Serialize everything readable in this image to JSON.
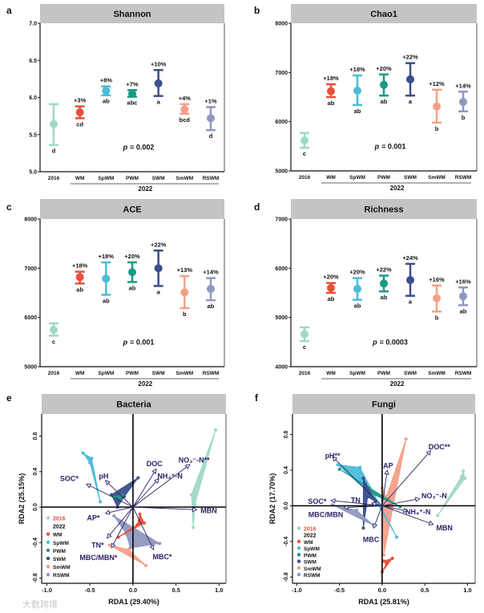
{
  "colors": {
    "2016": "#9fd9c6",
    "WM": "#e8503a",
    "SpWM": "#4bbcd8",
    "PWM": "#1a9a85",
    "SWM": "#3b4f8c",
    "SmWM": "#f4a089",
    "RSWM": "#8f98c0",
    "arrow": "#2a2468",
    "header": "#c4c4c4",
    "legend_2016_text": "#e8503a"
  },
  "watermark": "大数跨境",
  "chart_data": [
    {
      "type": "errorbar",
      "panel": "a",
      "title": "Shannon",
      "categories": [
        "2016",
        "WM",
        "SpWM",
        "PWM",
        "SWM",
        "SmWM",
        "RSWM"
      ],
      "group_label": "2022",
      "ylim": [
        5.0,
        7.0
      ],
      "yticks": [
        "5.0",
        "5.5",
        "6.0",
        "6.5",
        "7.0"
      ],
      "ytick_values": [
        5.0,
        5.5,
        6.0,
        6.5,
        7.0
      ],
      "mean": [
        5.64,
        5.8,
        6.09,
        6.05,
        6.19,
        5.84,
        5.72
      ],
      "lower": [
        5.36,
        5.72,
        6.03,
        6.01,
        6.02,
        5.78,
        5.56
      ],
      "upper": [
        5.91,
        5.88,
        6.15,
        6.1,
        6.37,
        5.91,
        5.87
      ],
      "change": [
        "",
        "+3%",
        "+8%",
        "+7%",
        "+10%",
        "+4%",
        "+1%"
      ],
      "letters": [
        "d",
        "cd",
        "ab",
        "abc",
        "a",
        "bcd",
        "d"
      ],
      "p_label": "p",
      "p_value": "= 0.002"
    },
    {
      "type": "errorbar",
      "panel": "b",
      "title": "Chao1",
      "categories": [
        "2016",
        "WM",
        "SpWM",
        "PWM",
        "SWM",
        "SmWM",
        "RSWM"
      ],
      "group_label": "2022",
      "ylim": [
        5000,
        8000
      ],
      "yticks": [
        "5000",
        "6000",
        "7000",
        "8000"
      ],
      "ytick_values": [
        5000,
        6000,
        7000,
        8000
      ],
      "mean": [
        5620,
        6620,
        6630,
        6750,
        6860,
        6310,
        6400
      ],
      "lower": [
        5470,
        6500,
        6340,
        6530,
        6530,
        5980,
        6210
      ],
      "upper": [
        5770,
        6760,
        6940,
        6960,
        7190,
        6650,
        6610
      ],
      "change": [
        "",
        "+18%",
        "+18%",
        "+20%",
        "+22%",
        "+12%",
        "+14%"
      ],
      "letters": [
        "c",
        "ab",
        "ab",
        "ab",
        "a",
        "b",
        "b"
      ],
      "p_label": "p",
      "p_value": "= 0.001"
    },
    {
      "type": "errorbar",
      "panel": "c",
      "title": "ACE",
      "categories": [
        "2016",
        "WM",
        "SpWM",
        "PWM",
        "SWM",
        "SmWM",
        "RSWM"
      ],
      "group_label": "2022",
      "ylim": [
        5000,
        8000
      ],
      "yticks": [
        "5000",
        "6000",
        "7000",
        "8000"
      ],
      "ytick_values": [
        5000,
        6000,
        7000,
        8000
      ],
      "mean": [
        5750,
        6820,
        6790,
        6920,
        7000,
        6510,
        6580
      ],
      "lower": [
        5630,
        6690,
        6460,
        6720,
        6640,
        6190,
        6350
      ],
      "upper": [
        5880,
        6930,
        7120,
        7120,
        7360,
        6840,
        6800
      ],
      "change": [
        "",
        "+18%",
        "+18%",
        "+20%",
        "+22%",
        "+13%",
        "+14%"
      ],
      "letters": [
        "c",
        "ab",
        "ab",
        "ab",
        "a",
        "b",
        "ab"
      ],
      "p_label": "p",
      "p_value": "= 0.001"
    },
    {
      "type": "errorbar",
      "panel": "d",
      "title": "Richness",
      "categories": [
        "2016",
        "WM",
        "SpWM",
        "PWM",
        "SWM",
        "SmWM",
        "RSWM"
      ],
      "group_label": "2022",
      "ylim": [
        4000,
        7000
      ],
      "yticks": [
        "4000",
        "5000",
        "6000",
        "7000"
      ],
      "ytick_values": [
        4000,
        5000,
        6000,
        7000
      ],
      "mean": [
        4660,
        5600,
        5580,
        5690,
        5760,
        5390,
        5430
      ],
      "lower": [
        4520,
        5500,
        5360,
        5530,
        5440,
        5120,
        5250
      ],
      "upper": [
        4800,
        5700,
        5800,
        5850,
        6090,
        5650,
        5610
      ],
      "change": [
        "",
        "+20%",
        "+20%",
        "+22%",
        "+24%",
        "+16%",
        "+16%"
      ],
      "letters": [
        "c",
        "ab",
        "ab",
        "ab",
        "a",
        "b",
        "ab"
      ],
      "p_label": "p",
      "p_value": "= 0.0003"
    },
    {
      "type": "scatter",
      "subtype": "rda-biplot",
      "panel": "e",
      "title": "Bacteria",
      "xlabel": "RDA1 (29.40%)",
      "ylabel": "RDA2 (25.15%)",
      "xlim": [
        -1.06,
        1.08
      ],
      "ylim": [
        -0.86,
        1.05
      ],
      "xticks": [
        "-1.0",
        "-0.5",
        "0.0",
        "0.5",
        "1.0"
      ],
      "xtick_values": [
        -1,
        -0.5,
        0,
        0.5,
        1
      ],
      "yticks": [
        "-0.8",
        "-0.4",
        "0.0",
        "0.4",
        "0.8"
      ],
      "ytick_values": [
        -0.8,
        -0.4,
        0,
        0.4,
        0.8
      ],
      "legend": {
        "placement": "bottom-left",
        "title_2016": "2016",
        "title_2022": "2022",
        "entries": [
          "WM",
          "SpWM",
          "PWM",
          "SWM",
          "SmWM",
          "RSWM"
        ]
      },
      "groups": [
        {
          "name": "2016",
          "points": [
            [
              0.96,
              0.87
            ],
            [
              0.68,
              0.14
            ],
            [
              0.7,
              -0.23
            ],
            [
              0.72,
              0.03
            ]
          ]
        },
        {
          "name": "SpWM",
          "points": [
            [
              -0.58,
              0.61
            ],
            [
              -0.48,
              0.55
            ],
            [
              -0.38,
              0.06
            ],
            [
              -0.5,
              0.5
            ]
          ]
        },
        {
          "name": "SWM",
          "points": [
            [
              0.06,
              0.33
            ],
            [
              -0.25,
              0.14
            ],
            [
              -0.18,
              0.0
            ],
            [
              -0.1,
              0.12
            ]
          ]
        },
        {
          "name": "PWM",
          "points": [
            [
              -0.12,
              0.14
            ],
            [
              -0.22,
              0.11
            ],
            [
              -0.15,
              0.1
            ]
          ]
        },
        {
          "name": "RSWM",
          "points": [
            [
              -0.22,
              -0.1
            ],
            [
              0.31,
              -0.41
            ],
            [
              -0.03,
              -0.46
            ],
            [
              -0.08,
              -0.3
            ]
          ]
        },
        {
          "name": "SmWM",
          "points": [
            [
              -0.27,
              -0.43
            ],
            [
              0.15,
              -0.66
            ],
            [
              -0.05,
              -0.48
            ]
          ]
        },
        {
          "name": "WM",
          "points": [
            [
              0.08,
              -0.08
            ],
            [
              0.13,
              -0.18
            ],
            [
              -0.17,
              -0.34
            ],
            [
              0.05,
              -0.2
            ]
          ]
        }
      ],
      "vectors": [
        {
          "label": "SOC*",
          "x": -0.54,
          "y": 0.26,
          "lx": -0.74,
          "ly": 0.32
        },
        {
          "label": "pH",
          "x": -0.32,
          "y": 0.3,
          "lx": -0.34,
          "ly": 0.35
        },
        {
          "label": "DOC",
          "x": 0.27,
          "y": 0.43,
          "lx": 0.25,
          "ly": 0.49
        },
        {
          "label": "NH₄⁺-N",
          "x": 0.3,
          "y": 0.32,
          "lx": 0.43,
          "ly": 0.35
        },
        {
          "label": "NO₃⁻-N**",
          "x": 0.66,
          "y": 0.48,
          "lx": 0.71,
          "ly": 0.53
        },
        {
          "label": "MBN",
          "x": 0.74,
          "y": -0.03,
          "lx": 0.88,
          "ly": -0.04
        },
        {
          "label": "MBC*",
          "x": 0.24,
          "y": -0.48,
          "lx": 0.34,
          "ly": -0.56
        },
        {
          "label": "MBC/MBN*",
          "x": -0.25,
          "y": -0.46,
          "lx": -0.4,
          "ly": -0.57
        },
        {
          "label": "TN*",
          "x": -0.3,
          "y": -0.35,
          "lx": -0.41,
          "ly": -0.43
        },
        {
          "label": "AP*",
          "x": -0.32,
          "y": -0.07,
          "lx": -0.46,
          "ly": -0.12
        }
      ]
    },
    {
      "type": "scatter",
      "subtype": "rda-biplot",
      "panel": "f",
      "title": "Fungi",
      "xlabel": "RDA1 (25.81%)",
      "ylabel": "RDA2 (17.70%)",
      "xlim": [
        -1.05,
        1.09
      ],
      "ylim": [
        -0.87,
        1.03
      ],
      "xticks": [
        "-1.0",
        "-0.5",
        "0.0",
        "0.5",
        "1.0"
      ],
      "xtick_values": [
        -1,
        -0.5,
        0,
        0.5,
        1
      ],
      "yticks": [
        "-0.8",
        "-0.4",
        "0.0",
        "0.4",
        "0.8"
      ],
      "ytick_values": [
        -0.8,
        -0.4,
        0,
        0.4,
        0.8
      ],
      "legend": {
        "placement": "bottom-left",
        "title_2016": "2016",
        "title_2022": "2022",
        "entries": [
          "WM",
          "SpWM",
          "PWM",
          "SWM",
          "SmWM",
          "RSWM"
        ]
      },
      "groups": [
        {
          "name": "2016",
          "points": [
            [
              0.95,
              0.39
            ],
            [
              0.97,
              0.31
            ],
            [
              0.65,
              -0.11
            ],
            [
              0.93,
              0.33
            ]
          ]
        },
        {
          "name": "SmWM",
          "points": [
            [
              0.28,
              0.75
            ],
            [
              0.02,
              -0.55
            ],
            [
              0.0,
              0.2
            ],
            [
              0.05,
              0.1
            ]
          ]
        },
        {
          "name": "WM",
          "points": [
            [
              0.02,
              -0.62
            ],
            [
              0.12,
              -0.59
            ],
            [
              0.0,
              -0.74
            ],
            [
              0.05,
              -0.65
            ]
          ]
        },
        {
          "name": "SpWM",
          "points": [
            [
              -0.52,
              0.46
            ],
            [
              -0.26,
              0.43
            ],
            [
              0.17,
              -0.35
            ],
            [
              -0.1,
              0.1
            ]
          ]
        },
        {
          "name": "PWM",
          "points": [
            [
              -0.5,
              0.41
            ],
            [
              0.21,
              -0.01
            ],
            [
              -0.15,
              0.15
            ],
            [
              -0.15,
              0.2
            ]
          ]
        },
        {
          "name": "SWM",
          "points": [
            [
              -0.22,
              0.31
            ],
            [
              -0.22,
              -0.25
            ],
            [
              -0.17,
              0.1
            ],
            [
              -0.08,
              0.05
            ]
          ]
        },
        {
          "name": "RSWM",
          "points": [
            [
              -0.58,
              0.01
            ],
            [
              -0.1,
              -0.22
            ],
            [
              -0.3,
              -0.05
            ]
          ]
        }
      ],
      "vectors": [
        {
          "label": "pH**",
          "x": -0.58,
          "y": 0.55,
          "lx": -0.58,
          "ly": 0.56
        },
        {
          "label": "DOC**",
          "x": 0.57,
          "y": 0.62,
          "lx": 0.67,
          "ly": 0.66
        },
        {
          "label": "AP",
          "x": 0.06,
          "y": 0.4,
          "lx": 0.07,
          "ly": 0.45
        },
        {
          "label": "NO₃⁻-N",
          "x": 0.44,
          "y": 0.08,
          "lx": 0.61,
          "ly": 0.11
        },
        {
          "label": "NH₄⁺-N",
          "x": 0.3,
          "y": -0.06,
          "lx": 0.42,
          "ly": -0.07
        },
        {
          "label": "MBN",
          "x": 0.6,
          "y": -0.21,
          "lx": 0.73,
          "ly": -0.25
        },
        {
          "label": "MBC",
          "x": -0.1,
          "y": -0.25,
          "lx": -0.13,
          "ly": -0.38
        },
        {
          "label": "SOC*",
          "x": -0.6,
          "y": 0.06,
          "lx": -0.76,
          "ly": 0.05
        },
        {
          "label": "MBC/MBN",
          "x": -0.45,
          "y": -0.02,
          "lx": -0.66,
          "ly": -0.1
        },
        {
          "label": "TN",
          "x": -0.12,
          "y": 0.03,
          "lx": -0.31,
          "ly": 0.06
        }
      ]
    }
  ]
}
